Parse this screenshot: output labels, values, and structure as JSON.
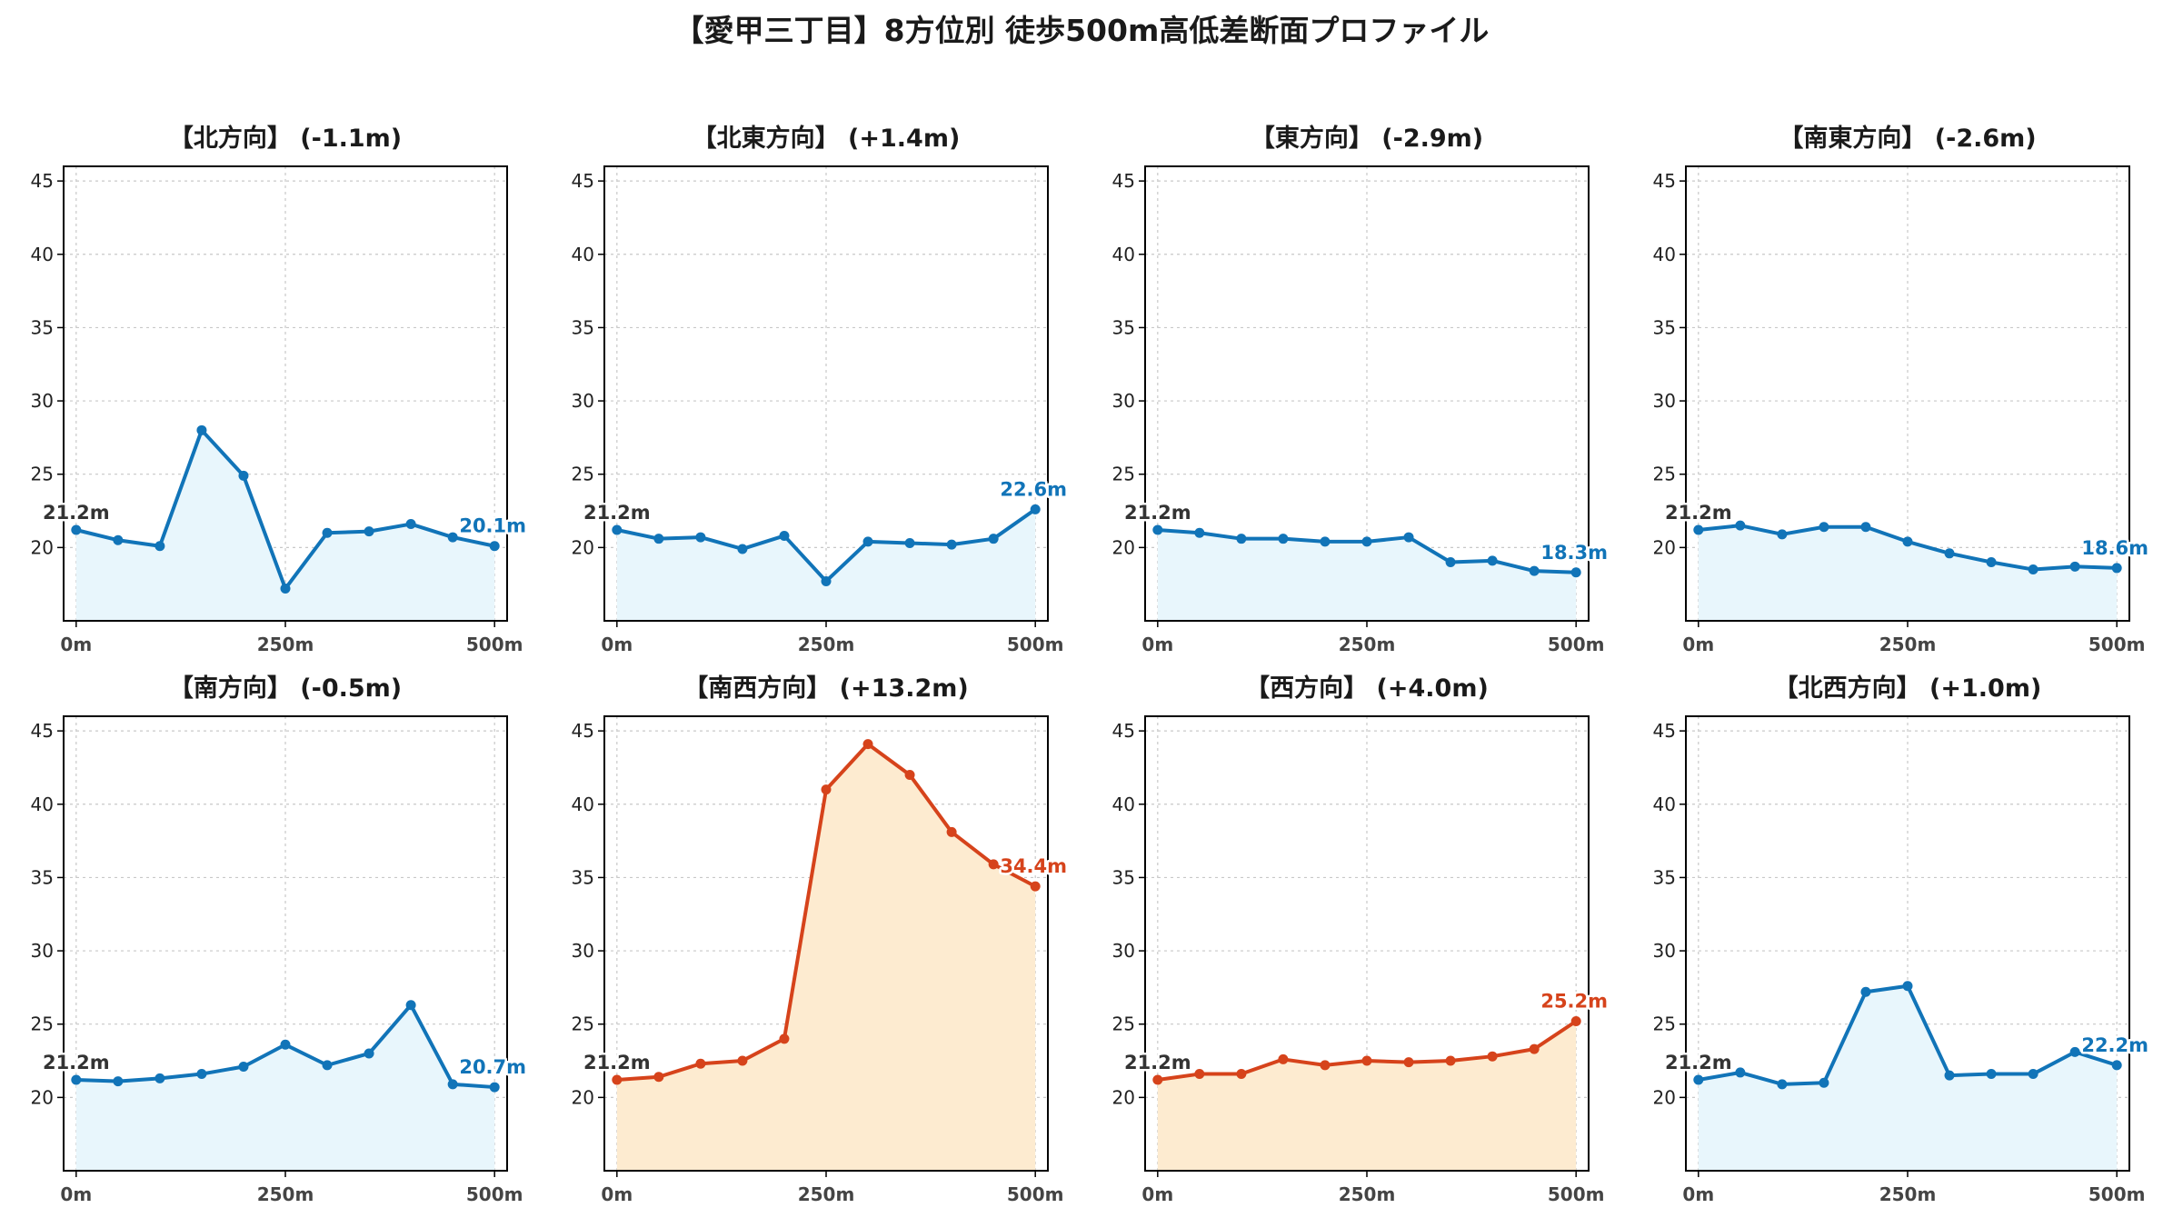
{
  "figure_title": "【愛甲三丁目】8方位別 徒歩500m高低差断面プロファイル",
  "colors": {
    "down_line": "#1174b8",
    "down_fill": "#e8f6fc",
    "up_line": "#d6431b",
    "up_fill": "#fdebd0",
    "start_label": "#333333",
    "grid": "#c8c8c8"
  },
  "chart_data": [
    {
      "type": "area",
      "title": "【北方向】 (-1.1m)",
      "trend": "down",
      "x": [
        0,
        50,
        100,
        150,
        200,
        250,
        300,
        350,
        400,
        450,
        500
      ],
      "values": [
        21.2,
        20.5,
        20.1,
        28.0,
        24.9,
        17.2,
        21.0,
        21.1,
        21.6,
        20.7,
        20.1
      ],
      "start_label": "21.2m",
      "end_label": "20.1m",
      "xtick_labels": [
        "0m",
        "250m",
        "500m"
      ],
      "xticks": [
        0,
        250,
        500
      ],
      "yticks": [
        20,
        25,
        30,
        35,
        40,
        45
      ],
      "ylim": [
        15,
        46
      ],
      "xlim": [
        -15,
        515
      ],
      "grid": true
    },
    {
      "type": "area",
      "title": "【北東方向】 (+1.4m)",
      "trend": "down",
      "x": [
        0,
        50,
        100,
        150,
        200,
        250,
        300,
        350,
        400,
        450,
        500
      ],
      "values": [
        21.2,
        20.6,
        20.7,
        19.9,
        20.8,
        17.7,
        20.4,
        20.3,
        20.2,
        20.6,
        22.6
      ],
      "start_label": "21.2m",
      "end_label": "22.6m",
      "xtick_labels": [
        "0m",
        "250m",
        "500m"
      ],
      "xticks": [
        0,
        250,
        500
      ],
      "yticks": [
        20,
        25,
        30,
        35,
        40,
        45
      ],
      "ylim": [
        15,
        46
      ],
      "xlim": [
        -15,
        515
      ],
      "grid": true
    },
    {
      "type": "area",
      "title": "【東方向】 (-2.9m)",
      "trend": "down",
      "x": [
        0,
        50,
        100,
        150,
        200,
        250,
        300,
        350,
        400,
        450,
        500
      ],
      "values": [
        21.2,
        21.0,
        20.6,
        20.6,
        20.4,
        20.4,
        20.7,
        19.0,
        19.1,
        18.4,
        18.3
      ],
      "start_label": "21.2m",
      "end_label": "18.3m",
      "xtick_labels": [
        "0m",
        "250m",
        "500m"
      ],
      "xticks": [
        0,
        250,
        500
      ],
      "yticks": [
        20,
        25,
        30,
        35,
        40,
        45
      ],
      "ylim": [
        15,
        46
      ],
      "xlim": [
        -15,
        515
      ],
      "grid": true
    },
    {
      "type": "area",
      "title": "【南東方向】 (-2.6m)",
      "trend": "down",
      "x": [
        0,
        50,
        100,
        150,
        200,
        250,
        300,
        350,
        400,
        450,
        500
      ],
      "values": [
        21.2,
        21.5,
        20.9,
        21.4,
        21.4,
        20.4,
        19.6,
        19.0,
        18.5,
        18.7,
        18.6
      ],
      "start_label": "21.2m",
      "end_label": "18.6m",
      "xtick_labels": [
        "0m",
        "250m",
        "500m"
      ],
      "xticks": [
        0,
        250,
        500
      ],
      "yticks": [
        20,
        25,
        30,
        35,
        40,
        45
      ],
      "ylim": [
        15,
        46
      ],
      "xlim": [
        -15,
        515
      ],
      "grid": true
    },
    {
      "type": "area",
      "title": "【南方向】 (-0.5m)",
      "trend": "down",
      "x": [
        0,
        50,
        100,
        150,
        200,
        250,
        300,
        350,
        400,
        450,
        500
      ],
      "values": [
        21.2,
        21.1,
        21.3,
        21.6,
        22.1,
        23.6,
        22.2,
        23.0,
        26.3,
        20.9,
        20.7
      ],
      "start_label": "21.2m",
      "end_label": "20.7m",
      "xtick_labels": [
        "0m",
        "250m",
        "500m"
      ],
      "xticks": [
        0,
        250,
        500
      ],
      "yticks": [
        20,
        25,
        30,
        35,
        40,
        45
      ],
      "ylim": [
        15,
        46
      ],
      "xlim": [
        -15,
        515
      ],
      "grid": true
    },
    {
      "type": "area",
      "title": "【南西方向】 (+13.2m)",
      "trend": "up",
      "x": [
        0,
        50,
        100,
        150,
        200,
        250,
        300,
        350,
        400,
        450,
        500
      ],
      "values": [
        21.2,
        21.4,
        22.3,
        22.5,
        24.0,
        41.0,
        44.1,
        42.0,
        38.1,
        35.9,
        34.4
      ],
      "start_label": "21.2m",
      "end_label": "34.4m",
      "xtick_labels": [
        "0m",
        "250m",
        "500m"
      ],
      "xticks": [
        0,
        250,
        500
      ],
      "yticks": [
        20,
        25,
        30,
        35,
        40,
        45
      ],
      "ylim": [
        15,
        46
      ],
      "xlim": [
        -15,
        515
      ],
      "grid": true
    },
    {
      "type": "area",
      "title": "【西方向】 (+4.0m)",
      "trend": "up",
      "x": [
        0,
        50,
        100,
        150,
        200,
        250,
        300,
        350,
        400,
        450,
        500
      ],
      "values": [
        21.2,
        21.6,
        21.6,
        22.6,
        22.2,
        22.5,
        22.4,
        22.5,
        22.8,
        23.3,
        25.2
      ],
      "start_label": "21.2m",
      "end_label": "25.2m",
      "xtick_labels": [
        "0m",
        "250m",
        "500m"
      ],
      "xticks": [
        0,
        250,
        500
      ],
      "yticks": [
        20,
        25,
        30,
        35,
        40,
        45
      ],
      "ylim": [
        15,
        46
      ],
      "xlim": [
        -15,
        515
      ],
      "grid": true
    },
    {
      "type": "area",
      "title": "【北西方向】 (+1.0m)",
      "trend": "down",
      "x": [
        0,
        50,
        100,
        150,
        200,
        250,
        300,
        350,
        400,
        450,
        500
      ],
      "values": [
        21.2,
        21.7,
        20.9,
        21.0,
        27.2,
        27.6,
        21.5,
        21.6,
        21.6,
        23.1,
        22.2
      ],
      "start_label": "21.2m",
      "end_label": "22.2m",
      "xtick_labels": [
        "0m",
        "250m",
        "500m"
      ],
      "xticks": [
        0,
        250,
        500
      ],
      "yticks": [
        20,
        25,
        30,
        35,
        40,
        45
      ],
      "ylim": [
        15,
        46
      ],
      "xlim": [
        -15,
        515
      ],
      "grid": true
    }
  ]
}
